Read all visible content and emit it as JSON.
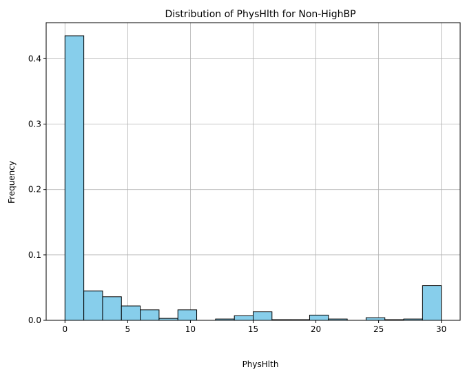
{
  "chart_data": {
    "type": "bar",
    "title": "Distribution of PhysHlth for Non-HighBP",
    "xlabel": "PhysHlth",
    "ylabel": "Frequency",
    "xlim": [
      -1.5,
      31.5
    ],
    "ylim": [
      0,
      0.455
    ],
    "xticks": [
      0,
      5,
      10,
      15,
      20,
      25,
      30
    ],
    "yticks": [
      0.0,
      0.1,
      0.2,
      0.3,
      0.4
    ],
    "grid": true,
    "bin_width": 1.5,
    "bin_edges": [
      0,
      1.5,
      3,
      4.5,
      6,
      7.5,
      9,
      10.5,
      12,
      13.5,
      15,
      16.5,
      18,
      19.5,
      21,
      22.5,
      24,
      25.5,
      27,
      28.5,
      30
    ],
    "values": [
      0.435,
      0.045,
      0.036,
      0.022,
      0.016,
      0.003,
      0.016,
      0.0,
      0.002,
      0.007,
      0.013,
      0.001,
      0.001,
      0.008,
      0.002,
      0.0,
      0.004,
      0.001,
      0.002,
      0.053
    ],
    "bar_color": "#87CEEB",
    "edge_color": "#000000",
    "grid_color": "#b0b0b0"
  }
}
